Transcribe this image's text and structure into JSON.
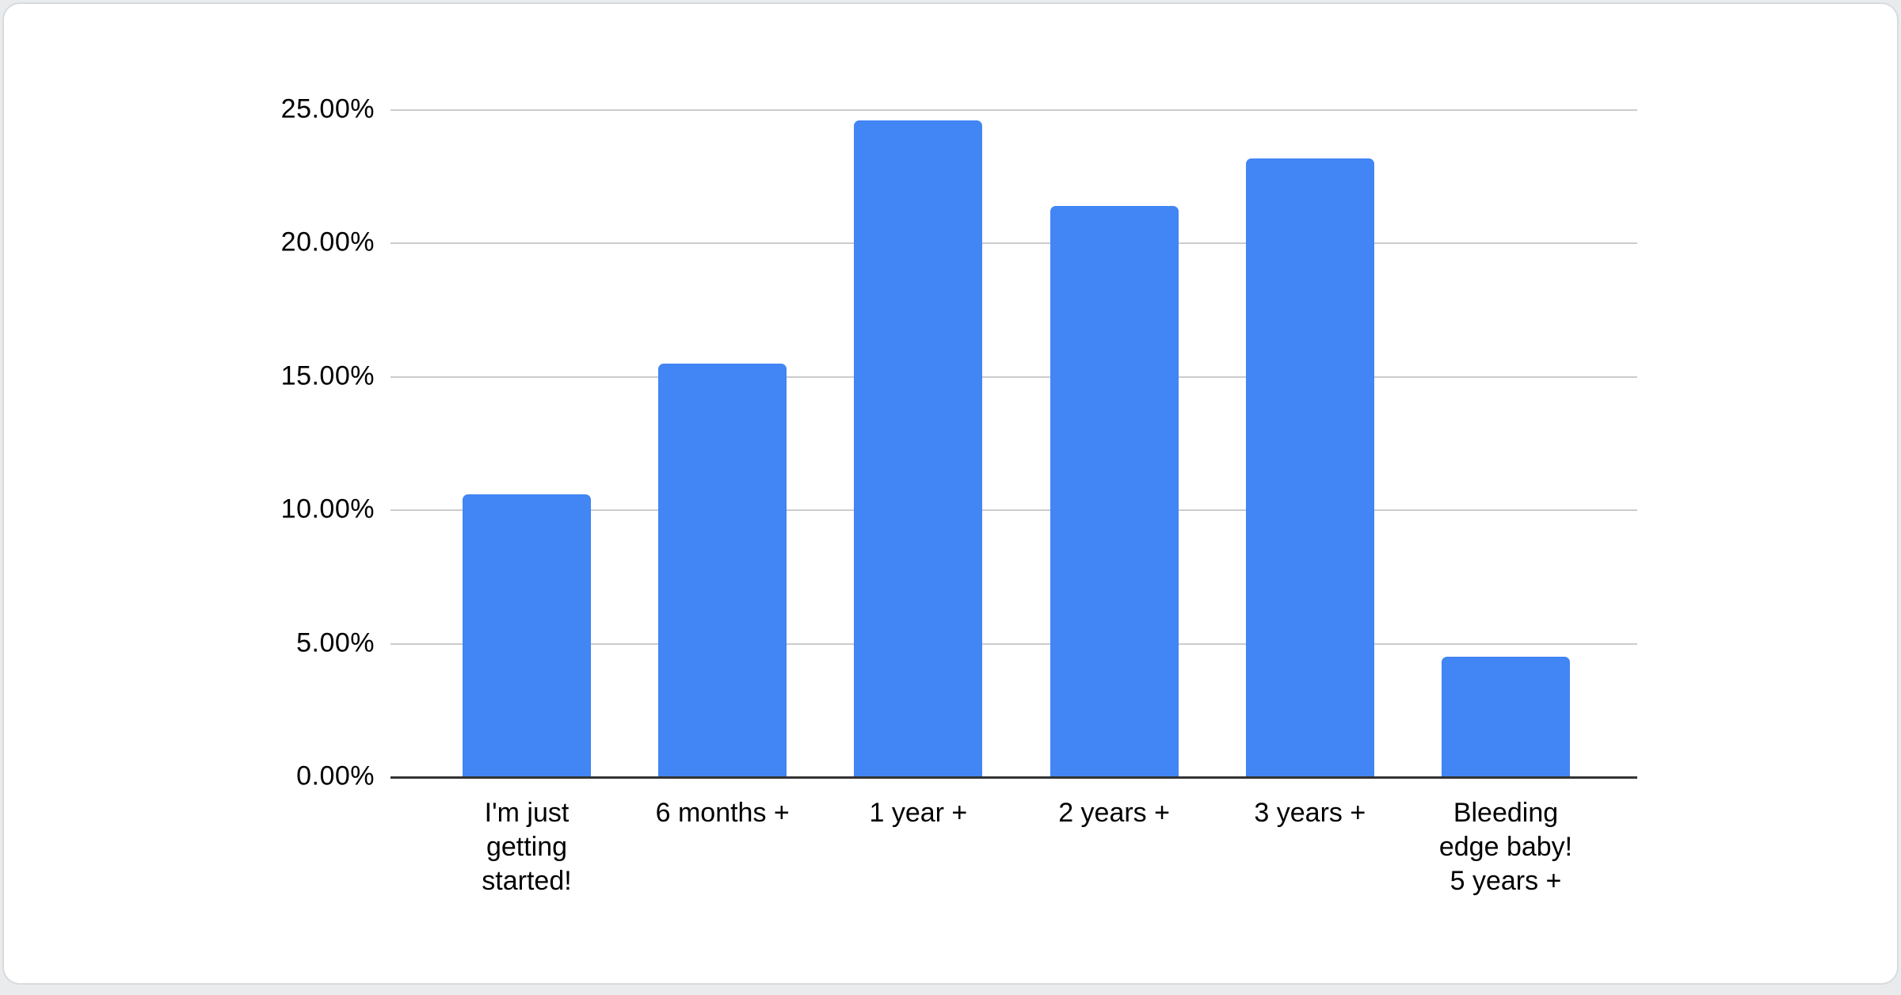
{
  "chart_data": {
    "type": "bar",
    "title": "",
    "categories": [
      "I'm just getting started!",
      "6 months +",
      "1 year +",
      "2 years +",
      "3 years +",
      "Bleeding edge baby! 5 years +"
    ],
    "categories_display": [
      "I'm just\ngetting\nstarted!",
      "6 months +",
      "1 year +",
      "2 years +",
      "3 years +",
      "Bleeding\nedge baby!\n5 years +"
    ],
    "values": [
      10.6,
      15.5,
      24.6,
      21.4,
      23.2,
      4.5
    ],
    "unit": "%",
    "xlabel": "",
    "ylabel": "",
    "ylim": [
      0,
      25
    ],
    "yticks": [
      0,
      5,
      10,
      15,
      20,
      25
    ],
    "ytick_labels": [
      "0.00%",
      "5.00%",
      "10.00%",
      "15.00%",
      "20.00%",
      "25.00%"
    ],
    "grid": true,
    "legend_position": "none",
    "bar_color": "#4285f4"
  },
  "colors": {
    "page_background": "#e9ebed",
    "card_background": "#ffffff",
    "card_border": "#d8dbde",
    "gridline": "#cccccc",
    "axis_line": "#333333",
    "label_text": "#000000"
  }
}
